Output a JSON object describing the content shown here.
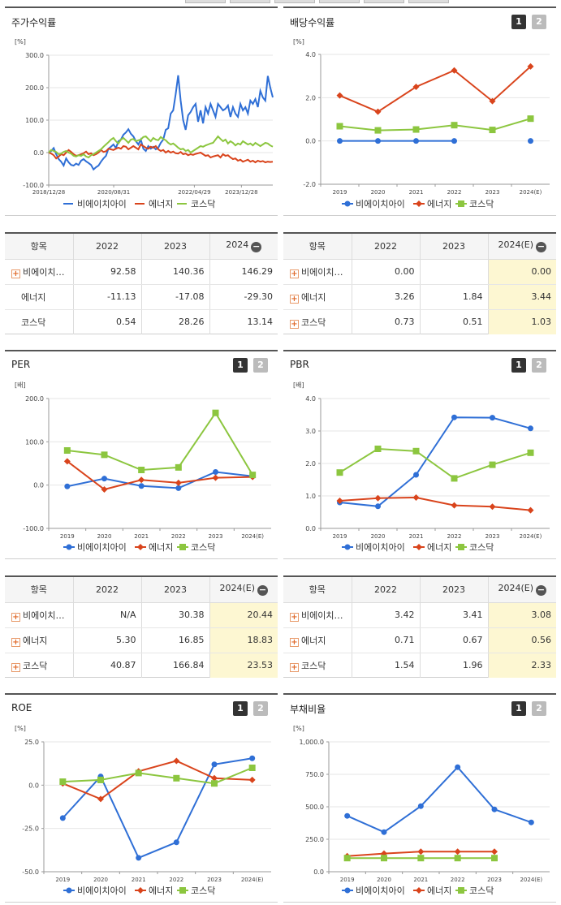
{
  "legend": [
    "비에이치아이",
    "에너지",
    "코스닥"
  ],
  "colors": {
    "s1": "#2f6fd6",
    "s2": "#d9441c",
    "s3": "#8cc63f"
  },
  "tab_labels": [
    "1",
    "2"
  ],
  "row_names_dividend": [
    "비에이치…",
    "에너지",
    "코스닥"
  ],
  "row_names_return": [
    "비에이치…",
    "에너지",
    "코스닥"
  ],
  "panels": {
    "return": {
      "title": "주가수익률",
      "unit": "[%]"
    },
    "dividend": {
      "title": "배당수익률",
      "unit": "[%]"
    },
    "per": {
      "title": "PER",
      "unit": "[배]"
    },
    "pbr": {
      "title": "PBR",
      "unit": "[배]"
    },
    "roe": {
      "title": "ROE",
      "unit": "[%]"
    },
    "debt": {
      "title": "부채비율",
      "unit": "[%]"
    }
  },
  "tables": {
    "return": {
      "header": [
        "항목",
        "2022",
        "2023",
        "2024"
      ],
      "rows": [
        [
          "비에이치…",
          "92.58",
          "140.36",
          "146.29"
        ],
        [
          "에너지",
          "-11.13",
          "-17.08",
          "-29.30"
        ],
        [
          "코스닥",
          "0.54",
          "28.26",
          "13.14"
        ]
      ]
    },
    "dividend": {
      "header": [
        "항목",
        "2022",
        "2023",
        "2024(E)"
      ],
      "rows": [
        [
          "비에이치…",
          "0.00",
          "",
          "0.00"
        ],
        [
          "에너지",
          "3.26",
          "1.84",
          "3.44"
        ],
        [
          "코스닥",
          "0.73",
          "0.51",
          "1.03"
        ]
      ]
    },
    "per": {
      "header": [
        "항목",
        "2022",
        "2023",
        "2024(E)"
      ],
      "rows": [
        [
          "비에이치…",
          "N/A",
          "30.38",
          "20.44"
        ],
        [
          "에너지",
          "5.30",
          "16.85",
          "18.83"
        ],
        [
          "코스닥",
          "40.87",
          "166.84",
          "23.53"
        ]
      ]
    },
    "pbr": {
      "header": [
        "항목",
        "2022",
        "2023",
        "2024(E)"
      ],
      "rows": [
        [
          "비에이치…",
          "3.42",
          "3.41",
          "3.08"
        ],
        [
          "에너지",
          "0.71",
          "0.67",
          "0.56"
        ],
        [
          "코스닥",
          "1.54",
          "1.96",
          "2.33"
        ]
      ]
    }
  },
  "chart_data": [
    {
      "id": "return",
      "type": "line",
      "title": "주가수익률",
      "ylabel": "[%]",
      "ylim": [
        -100,
        300
      ],
      "yticks": [
        "300.0",
        "200.0",
        "100.0",
        "0.0",
        "-100.0"
      ],
      "xticks": [
        "2018/12/28",
        "2020/08/31",
        "2022/04/29",
        "2023/12/28"
      ],
      "series": [
        {
          "name": "비에이치아이",
          "values": [
            0,
            5,
            14,
            -5,
            -20,
            -28,
            -40,
            -18,
            -30,
            -38,
            -40,
            -34,
            -38,
            -25,
            -20,
            -27,
            -32,
            -38,
            -52,
            -45,
            -40,
            -28,
            -18,
            -10,
            12,
            18,
            25,
            14,
            35,
            40,
            55,
            62,
            72,
            58,
            50,
            35,
            25,
            40,
            12,
            5,
            20,
            12,
            18,
            10,
            15,
            30,
            40,
            70,
            75,
            120,
            130,
            180,
            238,
            160,
            100,
            70,
            115,
            125,
            140,
            150,
            95,
            130,
            90,
            140,
            120,
            150,
            130,
            110,
            150,
            140,
            130,
            135,
            145,
            110,
            140,
            120,
            110,
            150,
            130,
            140,
            120,
            160,
            150,
            165,
            140,
            190,
            170,
            160,
            236,
            200,
            170
          ]
        },
        {
          "name": "에너지",
          "values": [
            0,
            -3,
            -8,
            -18,
            -12,
            -5,
            -8,
            0,
            8,
            2,
            -5,
            -10,
            -8,
            -5,
            -2,
            3,
            -5,
            -2,
            -8,
            -5,
            0,
            8,
            2,
            4,
            12,
            10,
            8,
            12,
            15,
            12,
            20,
            18,
            10,
            15,
            20,
            15,
            10,
            25,
            20,
            15,
            12,
            18,
            15,
            20,
            10,
            5,
            8,
            0,
            5,
            0,
            3,
            -2,
            -3,
            2,
            -5,
            -3,
            -8,
            -5,
            -7,
            -4,
            -2,
            0,
            -5,
            -10,
            -8,
            -15,
            -12,
            -10,
            -8,
            -15,
            -5,
            -10,
            -8,
            -15,
            -20,
            -18,
            -25,
            -22,
            -28,
            -25,
            -22,
            -28,
            -25,
            -30,
            -25,
            -28,
            -26,
            -30,
            -28,
            -29,
            -28
          ]
        },
        {
          "name": "코스닥",
          "values": [
            0,
            8,
            5,
            2,
            -5,
            -3,
            2,
            5,
            0,
            -3,
            -10,
            -12,
            -8,
            -10,
            -5,
            -12,
            -15,
            -8,
            -5,
            0,
            5,
            10,
            18,
            25,
            32,
            40,
            45,
            35,
            28,
            40,
            45,
            38,
            30,
            40,
            42,
            35,
            38,
            40,
            48,
            50,
            42,
            35,
            45,
            40,
            38,
            48,
            42,
            38,
            30,
            25,
            28,
            22,
            15,
            10,
            12,
            5,
            8,
            0,
            5,
            10,
            15,
            20,
            18,
            22,
            25,
            28,
            30,
            40,
            50,
            42,
            35,
            40,
            28,
            35,
            30,
            22,
            28,
            25,
            35,
            30,
            25,
            28,
            22,
            30,
            25,
            20,
            25,
            30,
            28,
            22,
            18
          ]
        }
      ]
    },
    {
      "id": "dividend",
      "type": "line",
      "title": "배당수익률",
      "ylabel": "[%]",
      "categories": [
        "2019",
        "2020",
        "2021",
        "2022",
        "2023",
        "2024(E)"
      ],
      "ylim": [
        -2,
        4
      ],
      "yticks": [
        "4.0",
        "2.0",
        "0.0",
        "-2.0"
      ],
      "series": [
        {
          "name": "비에이치아이",
          "values": [
            0.0,
            0.0,
            0.0,
            0.0,
            null,
            0.0
          ]
        },
        {
          "name": "에너지",
          "values": [
            2.1,
            1.35,
            2.5,
            3.26,
            1.84,
            3.44
          ]
        },
        {
          "name": "코스닥",
          "values": [
            0.68,
            0.49,
            0.53,
            0.73,
            0.51,
            1.03
          ]
        }
      ]
    },
    {
      "id": "per",
      "type": "line",
      "title": "PER",
      "ylabel": "[배]",
      "categories": [
        "2019",
        "2020",
        "2021",
        "2022",
        "2023",
        "2024(E)"
      ],
      "ylim": [
        -100,
        200
      ],
      "yticks": [
        "200.0",
        "100.0",
        "0.0",
        "-100.0"
      ],
      "series": [
        {
          "name": "비에이치아이",
          "values": [
            -3,
            15,
            -2,
            -7,
            30.38,
            20.44
          ]
        },
        {
          "name": "에너지",
          "values": [
            55,
            -10,
            12,
            5.3,
            16.85,
            18.83
          ]
        },
        {
          "name": "코스닥",
          "values": [
            80,
            70,
            35,
            40.87,
            166.84,
            23.53
          ]
        }
      ]
    },
    {
      "id": "pbr",
      "type": "line",
      "title": "PBR",
      "ylabel": "[배]",
      "categories": [
        "2019",
        "2020",
        "2021",
        "2022",
        "2023",
        "2024(E)"
      ],
      "ylim": [
        0,
        4
      ],
      "yticks": [
        "4.0",
        "3.0",
        "2.0",
        "1.0",
        "0.0"
      ],
      "series": [
        {
          "name": "비에이치아이",
          "values": [
            0.8,
            0.68,
            1.65,
            3.42,
            3.41,
            3.08
          ]
        },
        {
          "name": "에너지",
          "values": [
            0.85,
            0.93,
            0.95,
            0.71,
            0.67,
            0.56
          ]
        },
        {
          "name": "코스닥",
          "values": [
            1.72,
            2.45,
            2.38,
            1.54,
            1.96,
            2.33
          ]
        }
      ]
    },
    {
      "id": "roe",
      "type": "line",
      "title": "ROE",
      "ylabel": "[%]",
      "categories": [
        "2019",
        "2020",
        "2021",
        "2022",
        "2023",
        "2024(E)"
      ],
      "ylim": [
        -50,
        25
      ],
      "yticks": [
        "25.0",
        "0.0",
        "-25.0",
        "-50.0"
      ],
      "series": [
        {
          "name": "비에이치아이",
          "values": [
            -19,
            5,
            -42,
            -33,
            12,
            15.5
          ]
        },
        {
          "name": "에너지",
          "values": [
            1,
            -8,
            8,
            14,
            4,
            3
          ]
        },
        {
          "name": "코스닥",
          "values": [
            2,
            3,
            7,
            4,
            1,
            10
          ]
        }
      ]
    },
    {
      "id": "debt",
      "type": "line",
      "title": "부채비율",
      "ylabel": "[%]",
      "categories": [
        "2019",
        "2020",
        "2021",
        "2022",
        "2023",
        "2024(E)"
      ],
      "ylim": [
        0,
        1000
      ],
      "yticks": [
        "1,000.0",
        "750.0",
        "500.0",
        "250.0",
        "0.0"
      ],
      "series": [
        {
          "name": "비에이치아이",
          "values": [
            430,
            305,
            505,
            805,
            480,
            380
          ]
        },
        {
          "name": "에너지",
          "values": [
            120,
            140,
            155,
            155,
            155,
            null
          ]
        },
        {
          "name": "코스닥",
          "values": [
            105,
            105,
            105,
            105,
            105,
            null
          ]
        }
      ]
    }
  ]
}
